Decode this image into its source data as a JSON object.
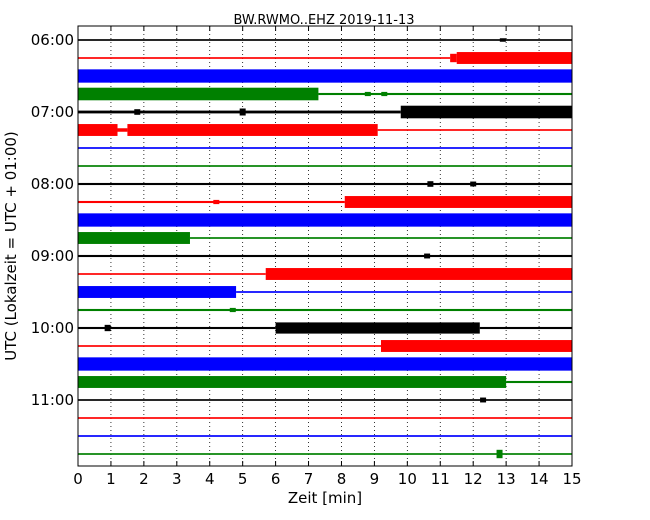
{
  "chart_data": {
    "type": "line",
    "title": "BW.RWMO..EHZ 2019-11-13",
    "xlabel": "Zeit  [min]",
    "ylabel": "UTC (Lokalzeit = UTC + 01:00)",
    "xlim": [
      0,
      15
    ],
    "x_ticks": [
      "0",
      "1",
      "2",
      "3",
      "4",
      "5",
      "6",
      "7",
      "8",
      "9",
      "10",
      "11",
      "12",
      "13",
      "14",
      "15"
    ],
    "y_ticks": [
      "06:00",
      "07:00",
      "08:00",
      "09:00",
      "10:00",
      "11:00"
    ],
    "grid": "vertical dotted",
    "color_cycle": [
      "#000000",
      "#ff0000",
      "#0000ff",
      "#008000"
    ],
    "series": [
      {
        "start": "06:00",
        "color": "#000000",
        "segments": [
          [
            0,
            15,
            0.12
          ]
        ],
        "spikes": [
          [
            12.9,
            0.25
          ]
        ]
      },
      {
        "start": "06:15",
        "color": "#ff0000",
        "segments": [
          [
            0,
            11.3,
            0.12
          ],
          [
            11.3,
            11.5,
            0.6
          ],
          [
            11.5,
            15,
            0.85
          ]
        ]
      },
      {
        "start": "06:30",
        "color": "#0000ff",
        "segments": [
          [
            0,
            15,
            0.95
          ]
        ]
      },
      {
        "start": "06:45",
        "color": "#008000",
        "segments": [
          [
            0,
            7.3,
            0.9
          ],
          [
            7.3,
            15,
            0.15
          ]
        ],
        "spikes": [
          [
            8.8,
            0.3
          ],
          [
            9.3,
            0.3
          ]
        ]
      },
      {
        "start": "07:00",
        "color": "#000000",
        "segments": [
          [
            0,
            9.8,
            0.2
          ],
          [
            9.8,
            15,
            0.9
          ]
        ],
        "spikes": [
          [
            1.8,
            0.4
          ],
          [
            5.0,
            0.5
          ]
        ]
      },
      {
        "start": "07:15",
        "color": "#ff0000",
        "segments": [
          [
            0,
            1.2,
            0.85
          ],
          [
            1.2,
            1.5,
            0.25
          ],
          [
            1.5,
            9.1,
            0.85
          ],
          [
            9.1,
            15,
            0.12
          ]
        ]
      },
      {
        "start": "07:30",
        "color": "#0000ff",
        "segments": [
          [
            0,
            15,
            0.12
          ]
        ]
      },
      {
        "start": "07:45",
        "color": "#008000",
        "segments": [
          [
            0,
            15,
            0.12
          ]
        ]
      },
      {
        "start": "08:00",
        "color": "#000000",
        "segments": [
          [
            0,
            15,
            0.15
          ]
        ],
        "spikes": [
          [
            10.7,
            0.4
          ],
          [
            12.0,
            0.35
          ]
        ]
      },
      {
        "start": "08:15",
        "color": "#ff0000",
        "segments": [
          [
            0,
            8.1,
            0.15
          ],
          [
            8.1,
            15,
            0.85
          ]
        ],
        "spikes": [
          [
            4.2,
            0.3
          ]
        ]
      },
      {
        "start": "08:30",
        "color": "#0000ff",
        "segments": [
          [
            0,
            15,
            0.95
          ]
        ]
      },
      {
        "start": "08:45",
        "color": "#008000",
        "segments": [
          [
            0,
            3.4,
            0.85
          ],
          [
            3.4,
            15,
            0.12
          ]
        ]
      },
      {
        "start": "09:00",
        "color": "#000000",
        "segments": [
          [
            0,
            15,
            0.15
          ]
        ],
        "spikes": [
          [
            10.6,
            0.35
          ]
        ]
      },
      {
        "start": "09:15",
        "color": "#ff0000",
        "segments": [
          [
            0,
            5.7,
            0.12
          ],
          [
            5.7,
            15,
            0.85
          ]
        ]
      },
      {
        "start": "09:30",
        "color": "#0000ff",
        "segments": [
          [
            0,
            4.8,
            0.85
          ],
          [
            4.8,
            15,
            0.12
          ]
        ]
      },
      {
        "start": "09:45",
        "color": "#008000",
        "segments": [
          [
            0,
            15,
            0.15
          ]
        ],
        "spikes": [
          [
            4.7,
            0.3
          ]
        ]
      },
      {
        "start": "10:00",
        "color": "#000000",
        "segments": [
          [
            0,
            6.0,
            0.15
          ],
          [
            6.0,
            12.2,
            0.8
          ],
          [
            12.2,
            15,
            0.15
          ]
        ],
        "spikes": [
          [
            0.9,
            0.45
          ]
        ]
      },
      {
        "start": "10:15",
        "color": "#ff0000",
        "segments": [
          [
            0,
            9.2,
            0.12
          ],
          [
            9.2,
            15,
            0.85
          ]
        ]
      },
      {
        "start": "10:30",
        "color": "#0000ff",
        "segments": [
          [
            0,
            15,
            0.95
          ]
        ]
      },
      {
        "start": "10:45",
        "color": "#008000",
        "segments": [
          [
            0,
            13.0,
            0.85
          ],
          [
            13.0,
            15,
            0.15
          ]
        ]
      },
      {
        "start": "11:00",
        "color": "#000000",
        "segments": [
          [
            0,
            15,
            0.12
          ]
        ],
        "spikes": [
          [
            12.3,
            0.35
          ]
        ]
      },
      {
        "start": "11:15",
        "color": "#ff0000",
        "segments": [
          [
            0,
            15,
            0.12
          ]
        ]
      },
      {
        "start": "11:30",
        "color": "#0000ff",
        "segments": [
          [
            0,
            15,
            0.12
          ]
        ]
      },
      {
        "start": "11:45",
        "color": "#008000",
        "segments": [
          [
            0,
            15,
            0.12
          ]
        ],
        "spikes": [
          [
            12.8,
            0.6
          ]
        ]
      }
    ]
  }
}
